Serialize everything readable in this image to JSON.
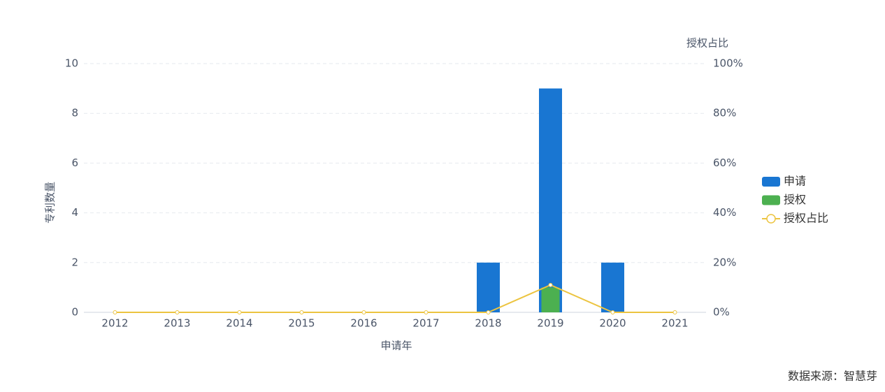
{
  "chart_data": {
    "type": "bar",
    "ylabel": "专利数量",
    "xlabel": "申请年",
    "y2label": "授权占比",
    "categories": [
      "2012",
      "2013",
      "2014",
      "2015",
      "2016",
      "2017",
      "2018",
      "2019",
      "2020",
      "2021"
    ],
    "series": [
      {
        "name": "申请",
        "type": "bar",
        "color": "#1976d2",
        "values": [
          0,
          0,
          0,
          0,
          0,
          0,
          2,
          9,
          2,
          0
        ]
      },
      {
        "name": "授权",
        "type": "bar",
        "color": "#4cb050",
        "values": [
          0,
          0,
          0,
          0,
          0,
          0,
          0,
          1,
          0,
          0
        ]
      },
      {
        "name": "授权占比",
        "type": "line",
        "axis": "y2",
        "color": "#ecc440",
        "values": [
          0,
          0,
          0,
          0,
          0,
          0,
          0,
          11,
          0,
          0
        ]
      }
    ],
    "ylim": [
      0,
      10
    ],
    "yticks": [
      0,
      2,
      4,
      6,
      8,
      10
    ],
    "y2lim": [
      0,
      100
    ],
    "y2ticks": [
      {
        "value": 0,
        "label": "0%"
      },
      {
        "value": 20,
        "label": "20%"
      },
      {
        "value": 40,
        "label": "40%"
      },
      {
        "value": 60,
        "label": "60%"
      },
      {
        "value": 80,
        "label": "80%"
      },
      {
        "value": 100,
        "label": "100%"
      }
    ],
    "grid": true,
    "legend": "right",
    "source": "数据来源：智慧芽"
  }
}
